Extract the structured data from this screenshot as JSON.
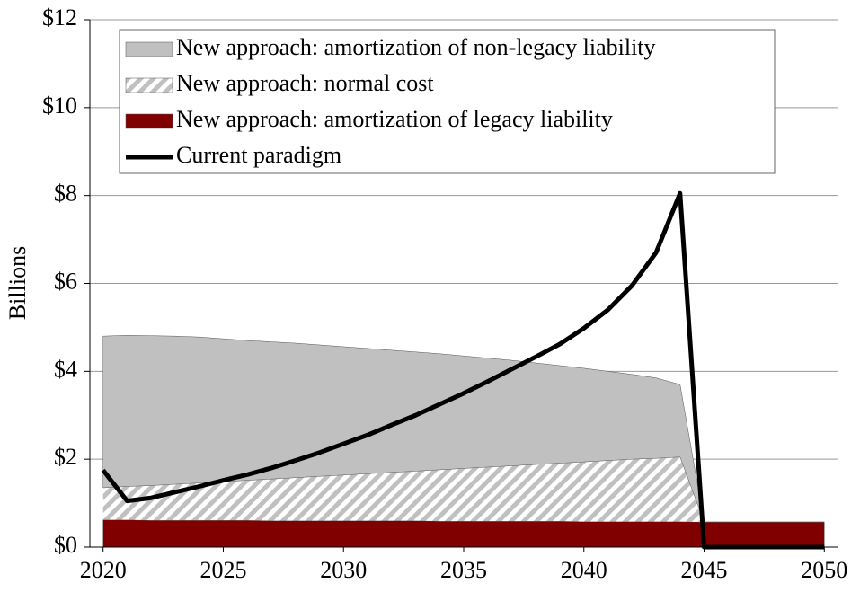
{
  "chart_data": {
    "type": "stacked-area-line",
    "ylabel": "Billions",
    "x": [
      2020,
      2021,
      2022,
      2023,
      2024,
      2025,
      2026,
      2027,
      2028,
      2029,
      2030,
      2031,
      2032,
      2033,
      2034,
      2035,
      2036,
      2037,
      2038,
      2039,
      2040,
      2041,
      2042,
      2043,
      2044,
      2045,
      2046,
      2047,
      2048,
      2049,
      2050
    ],
    "xlim": [
      2019.45,
      2050.55
    ],
    "xticks": [
      2020,
      2025,
      2030,
      2035,
      2040,
      2045,
      2050
    ],
    "ylim": [
      0,
      12
    ],
    "yticks": [
      {
        "value": 0,
        "label": "$0"
      },
      {
        "value": 2,
        "label": "$2"
      },
      {
        "value": 4,
        "label": "$4"
      },
      {
        "value": 6,
        "label": "$6"
      },
      {
        "value": 8,
        "label": "$8"
      },
      {
        "value": 10,
        "label": "$10"
      },
      {
        "value": 12,
        "label": "$12"
      }
    ],
    "grid": true,
    "legend": "top",
    "series": [
      {
        "name": "New approach: amortization of non-legacy liability",
        "kind": "area",
        "color": "#c0c0c0",
        "values": [
          3.45,
          3.44,
          3.41,
          3.37,
          3.32,
          3.25,
          3.18,
          3.12,
          3.06,
          2.99,
          2.92,
          2.85,
          2.78,
          2.71,
          2.64,
          2.56,
          2.48,
          2.4,
          2.31,
          2.22,
          2.13,
          2.03,
          1.93,
          1.83,
          1.65,
          0,
          0,
          0,
          0,
          0,
          0
        ]
      },
      {
        "name": "New approach: normal cost",
        "kind": "area",
        "color": "#c0c0c0",
        "pattern": "hatch",
        "values": [
          0.73,
          0.76,
          0.79,
          0.82,
          0.85,
          0.88,
          0.91,
          0.95,
          0.98,
          1.01,
          1.04,
          1.07,
          1.1,
          1.13,
          1.17,
          1.2,
          1.23,
          1.26,
          1.29,
          1.32,
          1.36,
          1.39,
          1.42,
          1.44,
          1.47,
          0,
          0,
          0,
          0,
          0,
          0
        ]
      },
      {
        "name": "New approach: amortization of legacy liability",
        "kind": "area",
        "color": "#800000",
        "values": [
          0.62,
          0.62,
          0.61,
          0.61,
          0.61,
          0.61,
          0.61,
          0.6,
          0.6,
          0.6,
          0.6,
          0.6,
          0.6,
          0.6,
          0.59,
          0.59,
          0.59,
          0.59,
          0.59,
          0.59,
          0.58,
          0.58,
          0.58,
          0.58,
          0.58,
          0.57,
          0.57,
          0.57,
          0.57,
          0.57,
          0.57
        ]
      },
      {
        "name": "Current paradigm",
        "kind": "line",
        "color": "#000000",
        "values": [
          1.75,
          1.05,
          1.12,
          1.25,
          1.38,
          1.52,
          1.65,
          1.8,
          1.97,
          2.15,
          2.35,
          2.55,
          2.78,
          3.0,
          3.25,
          3.5,
          3.77,
          4.05,
          4.33,
          4.62,
          4.98,
          5.4,
          5.95,
          6.7,
          8.05,
          0,
          0,
          0,
          0,
          0,
          0
        ]
      }
    ]
  }
}
